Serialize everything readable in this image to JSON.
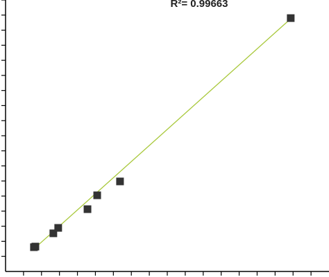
{
  "chart_data": {
    "type": "scatter",
    "annotation": "R²= 0.99663",
    "series": [
      {
        "name": "data",
        "color": "#333333",
        "x": [
          1.66,
          1.58,
          2.66,
          2.93,
          4.56,
          5.1,
          6.37,
          15.87
        ],
        "y": [
          1.65,
          1.61,
          2.53,
          2.89,
          4.13,
          5.05,
          5.97,
          16.8
        ]
      }
    ],
    "fit_line": {
      "color": "#a8c83a",
      "x": [
        1.47,
        15.87
      ],
      "y": [
        1.38,
        16.76
      ]
    },
    "xlim": [
      0,
      18
    ],
    "ylim": [
      0,
      18
    ],
    "xticks": [
      1,
      2,
      3,
      4,
      5,
      6,
      7,
      8,
      9,
      10,
      11,
      12,
      13,
      14,
      15,
      16,
      17
    ],
    "yticks": [
      1,
      2,
      3,
      4,
      5,
      6,
      7,
      8,
      9,
      10,
      11,
      12,
      13,
      14,
      15,
      16,
      17,
      18
    ]
  }
}
